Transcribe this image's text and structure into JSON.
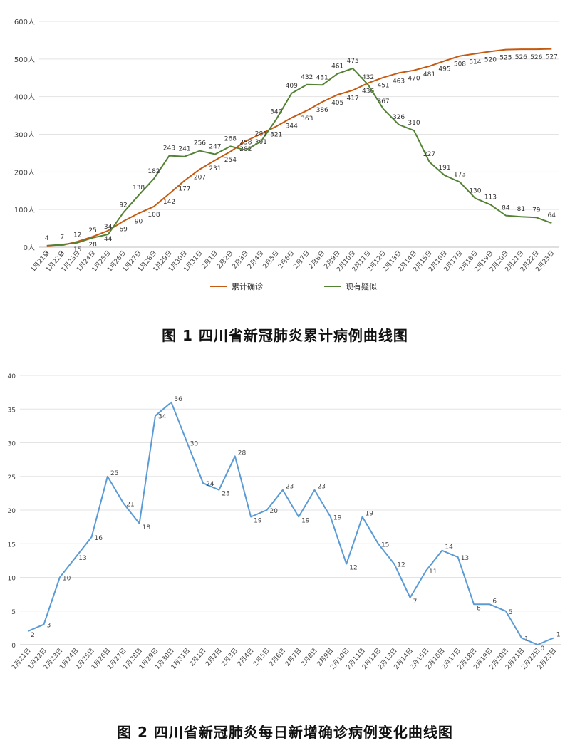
{
  "captions": {
    "figure1": "图 1   四川省新冠肺炎累计病例曲线图",
    "figure2": "图 2   四川省新冠肺炎每日新增确诊病例变化曲线图"
  },
  "chart_data": [
    {
      "type": "line",
      "x": [
        "1月21日",
        "1月22日",
        "1月23日",
        "1月24日",
        "1月25日",
        "1月26日",
        "1月27日",
        "1月28日",
        "1月29日",
        "1月30日",
        "1月31日",
        "2月1日",
        "2月2日",
        "2月3日",
        "2月4日",
        "2月5日",
        "2月6日",
        "2月7日",
        "2月8日",
        "2月9日",
        "2月10日",
        "2月11日",
        "2月12日",
        "2月13日",
        "2月14日",
        "2月15日",
        "2月16日",
        "2月17日",
        "2月18日",
        "2月19日",
        "2月20日",
        "2月21日",
        "2月22日",
        "2月23日"
      ],
      "series": [
        {
          "name": "累计确诊",
          "color": "#c55a11",
          "values": [
            2,
            5,
            15,
            28,
            44,
            69,
            90,
            108,
            142,
            177,
            207,
            231,
            254,
            282,
            301,
            321,
            344,
            363,
            386,
            405,
            417,
            436,
            451,
            463,
            470,
            481,
            495,
            508,
            514,
            520,
            525,
            526,
            526,
            527
          ]
        },
        {
          "name": "现有疑似",
          "color": "#548235",
          "values": [
            4,
            7,
            12,
            25,
            34,
            92,
            138,
            182,
            243,
            241,
            256,
            247,
            268,
            258,
            281,
            340,
            409,
            432,
            431,
            461,
            475,
            432,
            367,
            326,
            310,
            227,
            191,
            173,
            130,
            113,
            84,
            81,
            79,
            64
          ]
        }
      ],
      "y_ticks": [
        "0人",
        "100人",
        "200人",
        "300人",
        "400人",
        "500人",
        "600人"
      ],
      "ylim": [
        0,
        600
      ],
      "grid": true,
      "legend": "bottom"
    },
    {
      "type": "line",
      "x": [
        "1月21日",
        "1月22日",
        "1月23日",
        "1月24日",
        "1月25日",
        "1月26日",
        "1月27日",
        "1月28日",
        "1月29日",
        "1月30日",
        "1月31日",
        "2月1日",
        "2月2日",
        "2月3日",
        "2月4日",
        "2月5日",
        "2月6日",
        "2月7日",
        "2月8日",
        "2月9日",
        "2月10日",
        "2月11日",
        "2月12日",
        "2月13日",
        "2月14日",
        "2月15日",
        "2月16日",
        "2月17日",
        "2月18日",
        "2月19日",
        "2月20日",
        "2月21日",
        "2月22日",
        "2月23日"
      ],
      "series": [
        {
          "color": "#5b9bd5",
          "values": [
            2,
            3,
            10,
            13,
            16,
            25,
            21,
            18,
            34,
            36,
            30,
            24,
            23,
            28,
            19,
            20,
            23,
            19,
            23,
            19,
            12,
            19,
            15,
            12,
            7,
            11,
            14,
            13,
            6,
            6,
            5,
            1,
            0,
            1
          ]
        }
      ],
      "y_ticks": [
        "0",
        "5",
        "10",
        "15",
        "20",
        "25",
        "30",
        "35",
        "40"
      ],
      "ylim": [
        0,
        40
      ],
      "grid": true
    }
  ]
}
